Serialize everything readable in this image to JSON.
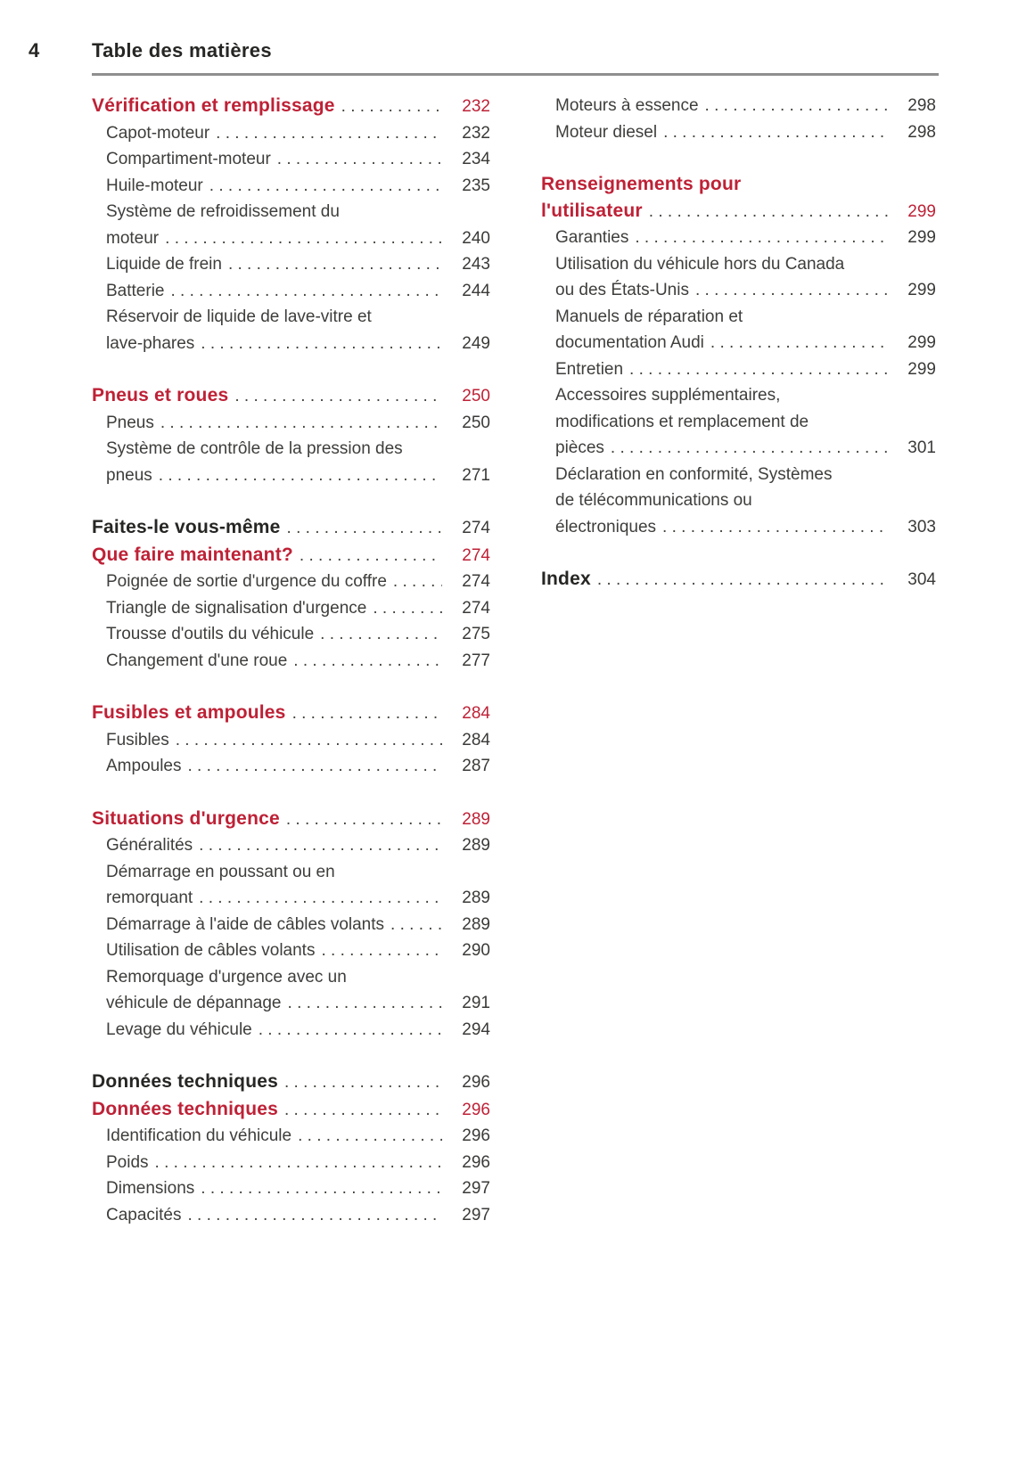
{
  "page_header": {
    "page_number": "4",
    "title": "Table des matières"
  },
  "colors": {
    "accent_red": "#be2136",
    "heading_black": "#262624",
    "body_text": "#3e3e3c",
    "rule_gray": "#8f8f8f",
    "background": "#ffffff"
  },
  "toc": {
    "columns": [
      {
        "groups": [
          {
            "items": [
              {
                "style": "head-red",
                "lines": [
                  "Vérification et remplissage"
                ],
                "page": "232"
              },
              {
                "style": "body",
                "lines": [
                  "Capot-moteur"
                ],
                "page": "232"
              },
              {
                "style": "body",
                "lines": [
                  "Compartiment-moteur"
                ],
                "page": "234"
              },
              {
                "style": "body",
                "lines": [
                  "Huile-moteur"
                ],
                "page": "235"
              },
              {
                "style": "body",
                "lines": [
                  "Système de refroidissement du",
                  "moteur"
                ],
                "page": "240"
              },
              {
                "style": "body",
                "lines": [
                  "Liquide de frein"
                ],
                "page": "243"
              },
              {
                "style": "body",
                "lines": [
                  "Batterie"
                ],
                "page": "244"
              },
              {
                "style": "body",
                "lines": [
                  "Réservoir de liquide de lave-vitre et",
                  "lave-phares"
                ],
                "page": "249"
              }
            ]
          },
          {
            "items": [
              {
                "style": "head-red",
                "lines": [
                  "Pneus et roues"
                ],
                "page": "250"
              },
              {
                "style": "body",
                "lines": [
                  "Pneus"
                ],
                "page": "250"
              },
              {
                "style": "body",
                "lines": [
                  "Système de contrôle de la pression des",
                  "pneus"
                ],
                "page": "271"
              }
            ]
          },
          {
            "items": [
              {
                "style": "head-black",
                "lines": [
                  "Faites-le vous-même"
                ],
                "page": "274"
              },
              {
                "style": "head-red",
                "lines": [
                  "Que faire maintenant?"
                ],
                "page": "274"
              },
              {
                "style": "body",
                "lines": [
                  "Poignée de sortie d'urgence du coffre"
                ],
                "page": "274"
              },
              {
                "style": "body",
                "lines": [
                  "Triangle de signalisation d'urgence"
                ],
                "page": "274"
              },
              {
                "style": "body",
                "lines": [
                  "Trousse d'outils du véhicule"
                ],
                "page": "275"
              },
              {
                "style": "body",
                "lines": [
                  "Changement d'une roue"
                ],
                "page": "277"
              }
            ]
          },
          {
            "items": [
              {
                "style": "head-red",
                "lines": [
                  "Fusibles et ampoules"
                ],
                "page": "284"
              },
              {
                "style": "body",
                "lines": [
                  "Fusibles"
                ],
                "page": "284"
              },
              {
                "style": "body",
                "lines": [
                  "Ampoules"
                ],
                "page": "287"
              }
            ]
          },
          {
            "items": [
              {
                "style": "head-red",
                "lines": [
                  "Situations d'urgence"
                ],
                "page": "289"
              },
              {
                "style": "body",
                "lines": [
                  "Généralités"
                ],
                "page": "289"
              },
              {
                "style": "body",
                "lines": [
                  "Démarrage en poussant ou en",
                  "remorquant"
                ],
                "page": "289"
              },
              {
                "style": "body",
                "lines": [
                  "Démarrage à l'aide de câbles volants"
                ],
                "page": "289"
              },
              {
                "style": "body",
                "lines": [
                  "Utilisation de câbles volants"
                ],
                "page": "290"
              },
              {
                "style": "body",
                "lines": [
                  "Remorquage d'urgence avec un",
                  "véhicule de dépannage"
                ],
                "page": "291"
              },
              {
                "style": "body",
                "lines": [
                  "Levage du véhicule"
                ],
                "page": "294"
              }
            ]
          },
          {
            "items": [
              {
                "style": "head-black",
                "lines": [
                  "Données techniques"
                ],
                "page": "296"
              },
              {
                "style": "head-red",
                "lines": [
                  "Données techniques"
                ],
                "page": "296"
              },
              {
                "style": "body",
                "lines": [
                  "Identification du véhicule"
                ],
                "page": "296"
              },
              {
                "style": "body",
                "lines": [
                  "Poids"
                ],
                "page": "296"
              },
              {
                "style": "body",
                "lines": [
                  "Dimensions"
                ],
                "page": "297"
              },
              {
                "style": "body",
                "lines": [
                  "Capacités"
                ],
                "page": "297"
              }
            ]
          }
        ]
      },
      {
        "groups": [
          {
            "items": [
              {
                "style": "body",
                "lines": [
                  "Moteurs à essence"
                ],
                "page": "298"
              },
              {
                "style": "body",
                "lines": [
                  "Moteur diesel"
                ],
                "page": "298"
              }
            ]
          },
          {
            "items": [
              {
                "style": "head-red",
                "lines": [
                  "Renseignements pour",
                  "l'utilisateur"
                ],
                "page": "299"
              },
              {
                "style": "body",
                "lines": [
                  "Garanties"
                ],
                "page": "299"
              },
              {
                "style": "body",
                "lines": [
                  "Utilisation du véhicule hors du Canada",
                  "ou des États-Unis"
                ],
                "page": "299"
              },
              {
                "style": "body",
                "lines": [
                  "Manuels de réparation et",
                  "documentation Audi"
                ],
                "page": "299"
              },
              {
                "style": "body",
                "lines": [
                  "Entretien"
                ],
                "page": "299"
              },
              {
                "style": "body",
                "lines": [
                  "Accessoires supplémentaires,",
                  "modifications et remplacement de",
                  "pièces"
                ],
                "page": "301"
              },
              {
                "style": "body",
                "lines": [
                  "Déclaration en conformité, Systèmes",
                  "de télécommunications ou",
                  "électroniques"
                ],
                "page": "303"
              }
            ]
          },
          {
            "items": [
              {
                "style": "head-black",
                "lines": [
                  "Index"
                ],
                "page": "304"
              }
            ]
          }
        ]
      }
    ]
  }
}
